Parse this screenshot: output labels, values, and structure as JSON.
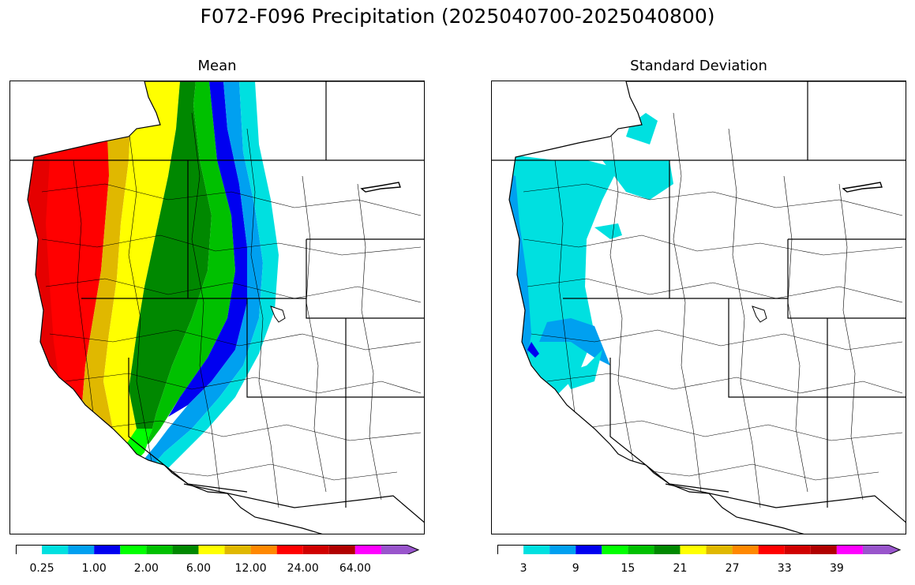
{
  "figure": {
    "title": "F072-F096 Precipitation (2025040700-2025040800)"
  },
  "panels": [
    {
      "id": "mean",
      "title": "Mean",
      "colorbar": {
        "colors": [
          "#ffffff",
          "#00e0e0",
          "#00a0f0",
          "#0000f0",
          "#00ff00",
          "#00c000",
          "#008800",
          "#ffff00",
          "#e0b800",
          "#ff8800",
          "#ff0000",
          "#d00000",
          "#b00000",
          "#ff00ff",
          "#9955cc"
        ],
        "tick_labels": [
          "0.25",
          "1.00",
          "2.00",
          "6.00",
          "12.00",
          "24.00",
          "64.00"
        ],
        "tick_boundaries": [
          1,
          3,
          5,
          7,
          9,
          11,
          13
        ],
        "extend": "max"
      }
    },
    {
      "id": "stddev",
      "title": "Standard Deviation",
      "colorbar": {
        "colors": [
          "#ffffff",
          "#00e0e0",
          "#00a0f0",
          "#0000f0",
          "#00ff00",
          "#00c000",
          "#008800",
          "#ffff00",
          "#e0b800",
          "#ff8800",
          "#ff0000",
          "#d00000",
          "#b00000",
          "#ff00ff",
          "#9955cc"
        ],
        "tick_labels": [
          "3",
          "9",
          "15",
          "21",
          "27",
          "33",
          "39"
        ],
        "tick_boundaries": [
          1,
          3,
          5,
          7,
          9,
          11,
          13
        ],
        "extend": "max"
      }
    }
  ]
}
